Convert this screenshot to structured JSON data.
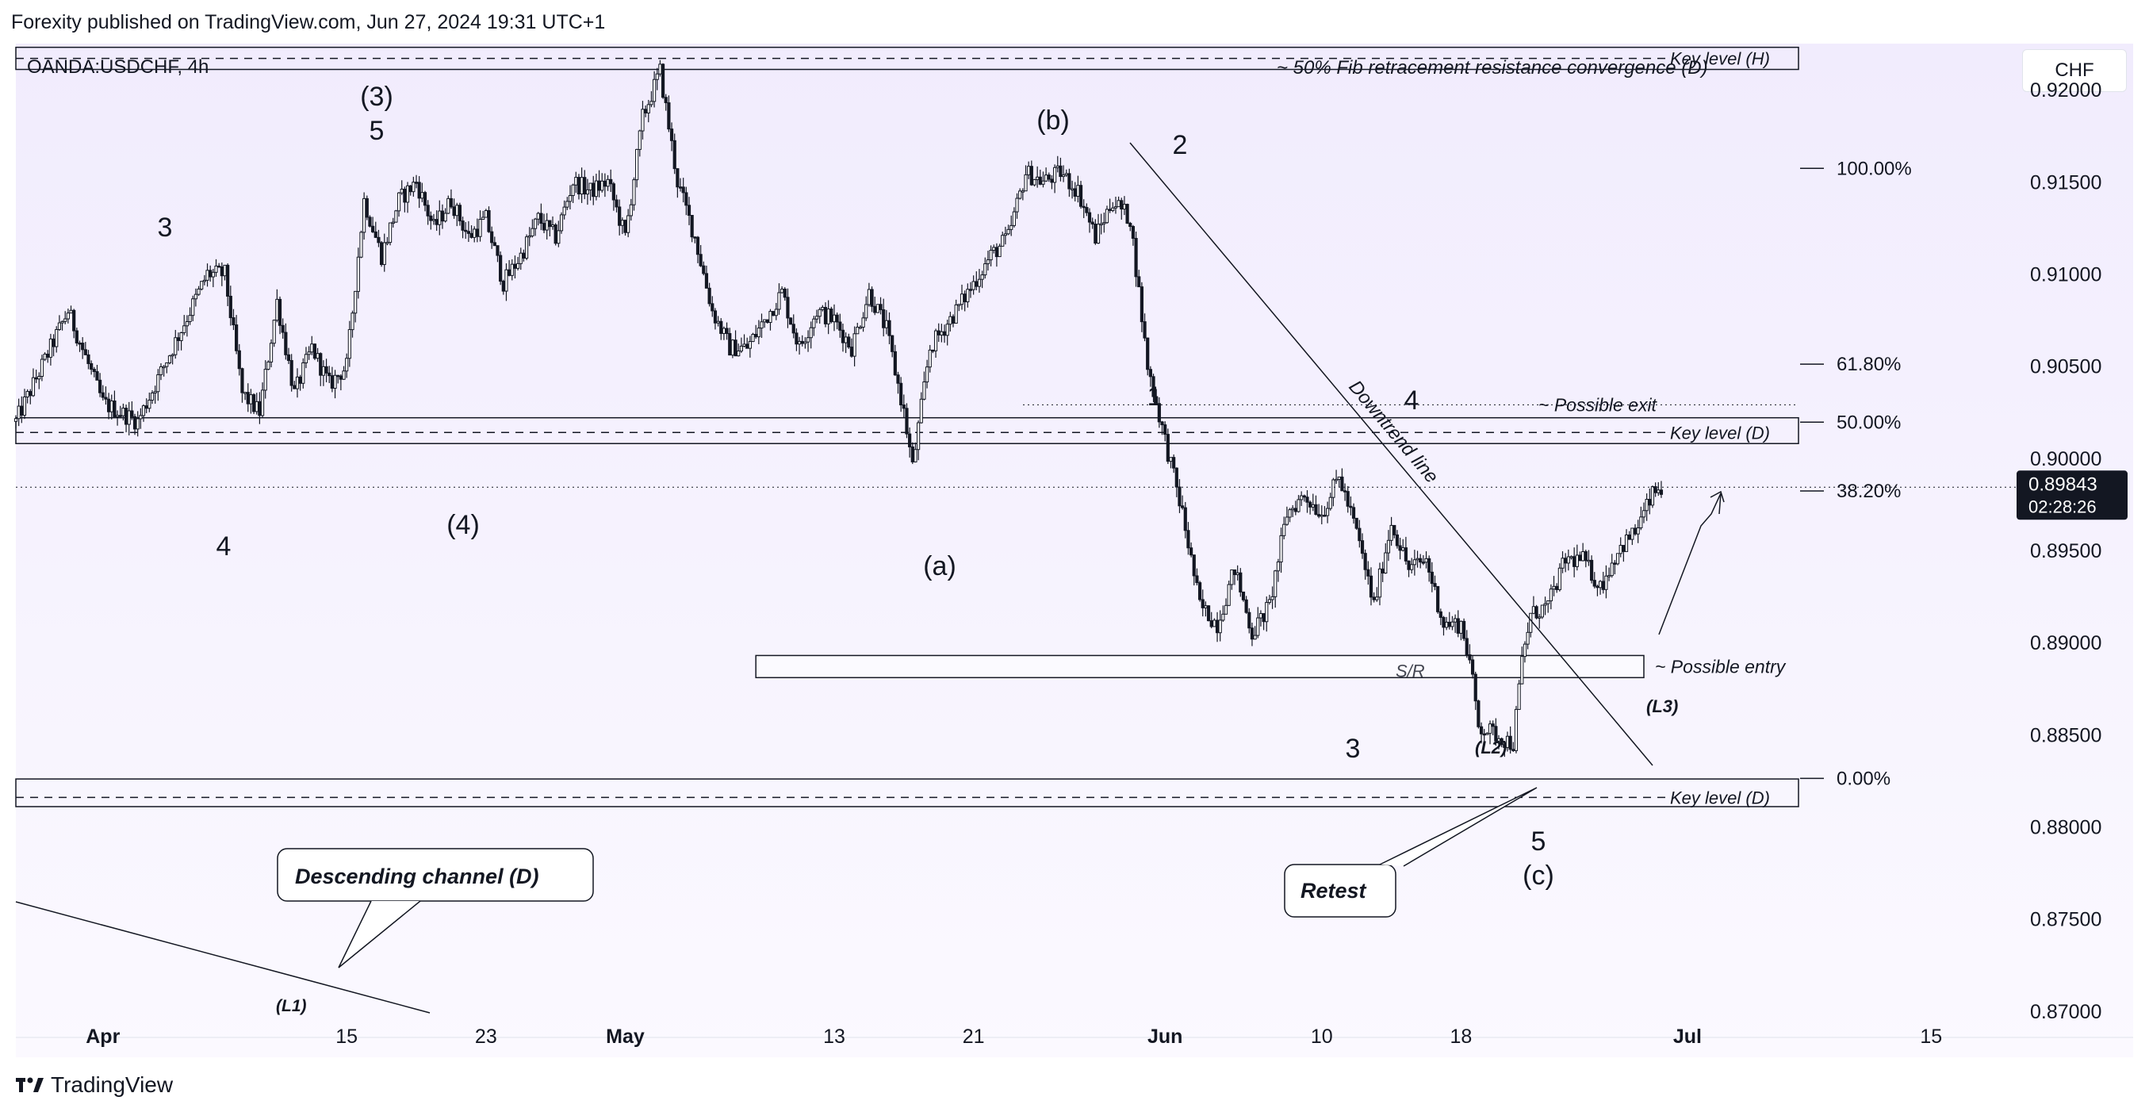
{
  "header": {
    "publisher_line": "Forexity published on TradingView.com, Jun 27, 2024 19:31 UTC+1",
    "symbol": "OANDA:USDCHF, 4h",
    "currency_button": "CHF"
  },
  "footer": {
    "brand": "TradingView"
  },
  "colors": {
    "candle": "#131722",
    "background_top": "#f1ecfd",
    "background_bottom": "#fbf9ff",
    "price_label_bg": "#131722"
  },
  "chart_data": {
    "type": "candlestick",
    "title": "OANDA:USDCHF, 4h",
    "ylim": [
      0.8675,
      0.9225
    ],
    "y_ticks": [
      "0.92000",
      "0.91500",
      "0.91000",
      "0.90500",
      "0.90000",
      "0.89500",
      "0.89000",
      "0.88500",
      "0.88000",
      "0.87500",
      "0.87000"
    ],
    "x_ticks": [
      {
        "label": "Apr",
        "day": 0
      },
      {
        "label": "15",
        "day": 14
      },
      {
        "label": "23",
        "day": 22
      },
      {
        "label": "May",
        "day": 30
      },
      {
        "label": "13",
        "day": 42
      },
      {
        "label": "21",
        "day": 50
      },
      {
        "label": "Jun",
        "day": 61
      },
      {
        "label": "10",
        "day": 70
      },
      {
        "label": "18",
        "day": 78
      },
      {
        "label": "Jul",
        "day": 91
      },
      {
        "label": "15",
        "day": 105
      }
    ],
    "xlim_days": [
      -5,
      111.5
    ],
    "price_anchor": {
      "day": -5,
      "price": 0.902
    },
    "price_path": [
      [
        -5,
        0.902
      ],
      [
        -2,
        0.908
      ],
      [
        0,
        0.903
      ],
      [
        2,
        0.902
      ],
      [
        4,
        0.906
      ],
      [
        6,
        0.91
      ],
      [
        7,
        0.91
      ],
      [
        8,
        0.9035
      ],
      [
        9,
        0.9025
      ],
      [
        10,
        0.9085
      ],
      [
        11,
        0.9035
      ],
      [
        12,
        0.906
      ],
      [
        13,
        0.904
      ],
      [
        14,
        0.905
      ],
      [
        15,
        0.914
      ],
      [
        16,
        0.911
      ],
      [
        17,
        0.914
      ],
      [
        18,
        0.915
      ],
      [
        19,
        0.9125
      ],
      [
        20,
        0.914
      ],
      [
        21,
        0.912
      ],
      [
        22,
        0.913
      ],
      [
        23,
        0.9095
      ],
      [
        24,
        0.911
      ],
      [
        25,
        0.913
      ],
      [
        26,
        0.912
      ],
      [
        27,
        0.915
      ],
      [
        28,
        0.9145
      ],
      [
        29,
        0.915
      ],
      [
        30,
        0.912
      ],
      [
        31,
        0.9185
      ],
      [
        32,
        0.921
      ],
      [
        33,
        0.915
      ],
      [
        34,
        0.912
      ],
      [
        35,
        0.908
      ],
      [
        36,
        0.906
      ],
      [
        37,
        0.906
      ],
      [
        38,
        0.9075
      ],
      [
        39,
        0.909
      ],
      [
        40,
        0.906
      ],
      [
        41,
        0.908
      ],
      [
        42,
        0.9075
      ],
      [
        43,
        0.906
      ],
      [
        44,
        0.909
      ],
      [
        45,
        0.907
      ],
      [
        46,
        0.9025
      ],
      [
        46.5,
        0.8995
      ],
      [
        47.5,
        0.906
      ],
      [
        49,
        0.908
      ],
      [
        51,
        0.911
      ],
      [
        52,
        0.912
      ],
      [
        53,
        0.9155
      ],
      [
        54,
        0.915
      ],
      [
        55,
        0.9155
      ],
      [
        56,
        0.9145
      ],
      [
        57,
        0.912
      ],
      [
        58,
        0.914
      ],
      [
        59,
        0.913
      ],
      [
        60,
        0.905
      ],
      [
        61,
        0.901
      ],
      [
        62,
        0.897
      ],
      [
        63,
        0.892
      ],
      [
        64,
        0.891
      ],
      [
        65,
        0.894
      ],
      [
        66,
        0.8905
      ],
      [
        67,
        0.892
      ],
      [
        68,
        0.897
      ],
      [
        69,
        0.898
      ],
      [
        70,
        0.897
      ],
      [
        71,
        0.899
      ],
      [
        72,
        0.896
      ],
      [
        73,
        0.892
      ],
      [
        74,
        0.8965
      ],
      [
        75,
        0.894
      ],
      [
        76,
        0.8945
      ],
      [
        77,
        0.891
      ],
      [
        78,
        0.891
      ],
      [
        78.5,
        0.889
      ],
      [
        79,
        0.8855
      ],
      [
        80,
        0.885
      ],
      [
        81,
        0.8845
      ],
      [
        81.5,
        0.889
      ],
      [
        82,
        0.8915
      ],
      [
        83,
        0.892
      ],
      [
        84,
        0.8945
      ],
      [
        85,
        0.8945
      ],
      [
        86,
        0.893
      ],
      [
        87,
        0.895
      ],
      [
        88,
        0.896
      ],
      [
        89,
        0.898
      ],
      [
        89.6,
        0.8985
      ]
    ],
    "last_price": "0.89843",
    "countdown": "02:28:26",
    "horizontal_levels": [
      {
        "label": "Key level (H)",
        "price": 0.9217,
        "zone": [
          0.9211,
          0.9223
        ]
      },
      {
        "label": "Key level (D)",
        "price": 0.9014,
        "zone": [
          0.9008,
          0.9022
        ]
      },
      {
        "label": "Key level (D)",
        "price": 0.8816,
        "zone": [
          0.8811,
          0.8826
        ]
      }
    ],
    "sr_zone": {
      "label": "S/R",
      "price_top": 0.8893,
      "price_bottom": 0.8881,
      "day_start": 37.5,
      "day_end": 88.5
    },
    "fib_levels": [
      {
        "label": "100.00%",
        "price": 0.91573
      },
      {
        "label": "61.80%",
        "price": 0.90511
      },
      {
        "label": "50.00%",
        "price": 0.90196
      },
      {
        "label": "38.20%",
        "price": 0.89823
      },
      {
        "label": "0.00%",
        "price": 0.88263
      }
    ],
    "annotations": {
      "fib_note": "~ 50% Fib retracement resistance convergence (D)",
      "possible_exit": "~ Possible exit",
      "possible_entry": "~ Possible entry",
      "downtrend_line": "Downtrend line",
      "descending_channel": "Descending channel (D)",
      "retest": "Retest",
      "l1": "(L1)",
      "l2": "(L2)",
      "l3": "(L3)"
    },
    "wave_labels": [
      {
        "text": "(3)",
        "day": 14,
        "price": 0.9219
      },
      {
        "text": "5",
        "day": 14,
        "price": 0.92
      },
      {
        "text": "3",
        "day": 8,
        "price": 0.915
      },
      {
        "text": "4",
        "day": 10,
        "price": 0.8951
      },
      {
        "text": "(4)",
        "day": 20,
        "price": 0.8961
      },
      {
        "text": "(b)",
        "day": 48,
        "price": 0.9205
      },
      {
        "text": "2",
        "day": 53,
        "price": 0.9178
      },
      {
        "text": "(a)",
        "day": 44,
        "price": 0.8947
      },
      {
        "text": "1",
        "day": 54,
        "price": 0.904
      },
      {
        "text": "4",
        "day": 67,
        "price": 0.9038
      },
      {
        "text": "3",
        "day": 64,
        "price": 0.8845
      },
      {
        "text": "5",
        "day": 73,
        "price": 0.8787
      },
      {
        "text": "(c)",
        "day": 73,
        "price": 0.8767
      }
    ]
  }
}
